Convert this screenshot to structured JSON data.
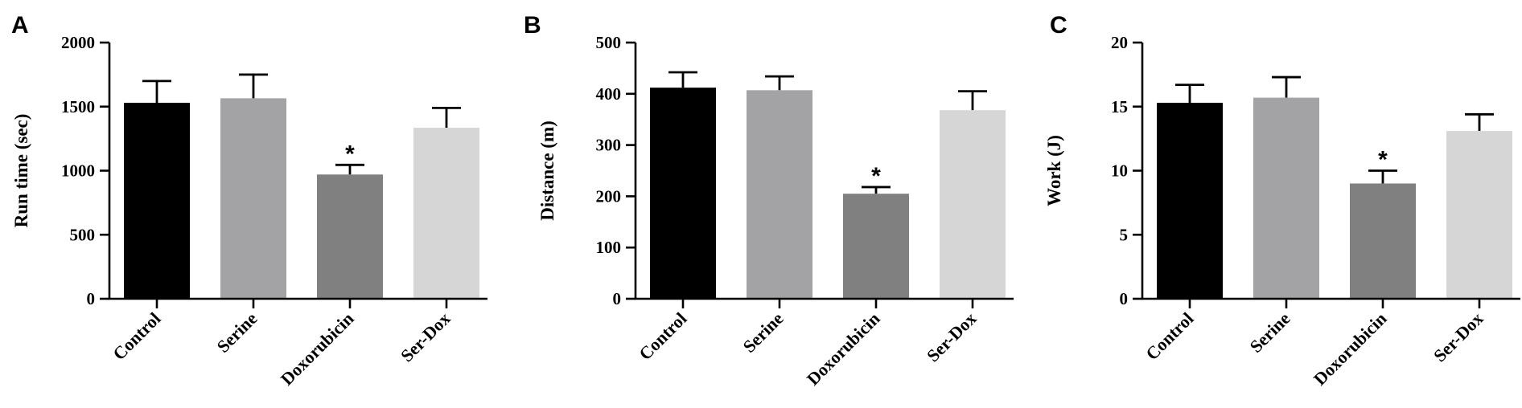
{
  "colors": [
    "#000000",
    "#a3a3a5",
    "#808080",
    "#d6d6d6"
  ],
  "chart_data": [
    {
      "panel": "A",
      "type": "bar",
      "categories": [
        "Control",
        "Serine",
        "Doxorubicin",
        "Ser-Dox"
      ],
      "values": [
        1530,
        1565,
        970,
        1335
      ],
      "errors": [
        170,
        185,
        75,
        155
      ],
      "significance": [
        "",
        "",
        "*",
        ""
      ],
      "ylabel": "Run time (sec)",
      "ylim": [
        0,
        2000
      ],
      "yticks": [
        0,
        500,
        1000,
        1500,
        2000
      ]
    },
    {
      "panel": "B",
      "type": "bar",
      "categories": [
        "Control",
        "Serine",
        "Doxorubicin",
        "Ser-Dox"
      ],
      "values": [
        412,
        407,
        205,
        368
      ],
      "errors": [
        30,
        27,
        13,
        37
      ],
      "significance": [
        "",
        "",
        "*",
        ""
      ],
      "ylabel": "Distance (m)",
      "ylim": [
        0,
        500
      ],
      "yticks": [
        0,
        100,
        200,
        300,
        400,
        500
      ]
    },
    {
      "panel": "C",
      "type": "bar",
      "categories": [
        "Control",
        "Serine",
        "Doxorubicin",
        "Ser-Dox"
      ],
      "values": [
        15.3,
        15.7,
        9.0,
        13.1
      ],
      "errors": [
        1.4,
        1.6,
        1.0,
        1.3
      ],
      "significance": [
        "",
        "",
        "*",
        ""
      ],
      "ylabel": "Work (J)",
      "ylim": [
        0,
        20
      ],
      "yticks": [
        0,
        5,
        10,
        15,
        20
      ]
    }
  ]
}
